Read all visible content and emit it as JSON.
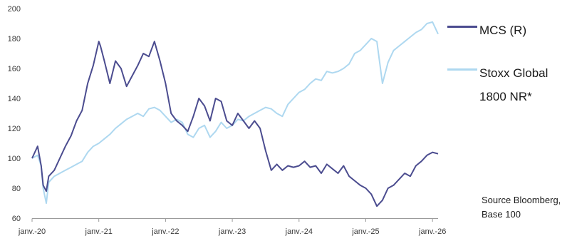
{
  "chart_data": {
    "type": "line",
    "title": "",
    "xlabel": "",
    "ylabel": "",
    "ylim": [
      60,
      200
    ],
    "yticks": [
      60,
      80,
      100,
      120,
      140,
      160,
      180,
      200
    ],
    "xticks": [
      "janv.-20",
      "janv.-21",
      "janv.-22",
      "janv.-23",
      "janv.-24",
      "janv.-25",
      "janv.-26"
    ],
    "x_start": "2020-01",
    "x_end": "2026-02",
    "grid": false,
    "legend_position": "right",
    "series": [
      {
        "name": "MCS (R)",
        "color": "#4b4c8f",
        "x": [
          "2020-01",
          "2020-02",
          "2020-02-20",
          "2020-03",
          "2020-03-18",
          "2020-04",
          "2020-05",
          "2020-06",
          "2020-07",
          "2020-08",
          "2020-09",
          "2020-10",
          "2020-11",
          "2020-12",
          "2021-01",
          "2021-01-10",
          "2021-02",
          "2021-03",
          "2021-04",
          "2021-05",
          "2021-06",
          "2021-07",
          "2021-08",
          "2021-09",
          "2021-10",
          "2021-11",
          "2021-12",
          "2022-01",
          "2022-02",
          "2022-03",
          "2022-04",
          "2022-05",
          "2022-06",
          "2022-07",
          "2022-08",
          "2022-09",
          "2022-10",
          "2022-11",
          "2022-12",
          "2023-01",
          "2023-02",
          "2023-03",
          "2023-04",
          "2023-05",
          "2023-06",
          "2023-07",
          "2023-08",
          "2023-09",
          "2023-10",
          "2023-11",
          "2023-12",
          "2024-01",
          "2024-02",
          "2024-03",
          "2024-04",
          "2024-05",
          "2024-06",
          "2024-07",
          "2024-08",
          "2024-09",
          "2024-10",
          "2024-11",
          "2024-12",
          "2025-01",
          "2025-02",
          "2025-03",
          "2025-04",
          "2025-05",
          "2025-06",
          "2025-07",
          "2025-08",
          "2025-09",
          "2025-10",
          "2025-11",
          "2025-12",
          "2026-01",
          "2026-02"
        ],
        "values": [
          100,
          108,
          95,
          82,
          78,
          88,
          92,
          100,
          108,
          115,
          125,
          132,
          150,
          162,
          178,
          175,
          165,
          150,
          165,
          160,
          148,
          155,
          162,
          170,
          168,
          178,
          165,
          150,
          130,
          125,
          122,
          118,
          128,
          140,
          135,
          125,
          140,
          138,
          125,
          122,
          130,
          125,
          120,
          125,
          120,
          105,
          92,
          96,
          92,
          95,
          94,
          95,
          98,
          94,
          95,
          90,
          96,
          93,
          90,
          95,
          88,
          85,
          82,
          80,
          76,
          68,
          72,
          80,
          82,
          86,
          90,
          88,
          95,
          98,
          102,
          104,
          103
        ]
      },
      {
        "name": "Stoxx Global\n1800 NR*",
        "color": "#aed8f0",
        "x": [
          "2020-01",
          "2020-02",
          "2020-02-20",
          "2020-03",
          "2020-03-18",
          "2020-04",
          "2020-05",
          "2020-06",
          "2020-07",
          "2020-08",
          "2020-09",
          "2020-10",
          "2020-11",
          "2020-12",
          "2021-01",
          "2021-02",
          "2021-03",
          "2021-04",
          "2021-05",
          "2021-06",
          "2021-07",
          "2021-08",
          "2021-09",
          "2021-10",
          "2021-11",
          "2021-12",
          "2022-01",
          "2022-02",
          "2022-03",
          "2022-04",
          "2022-05",
          "2022-06",
          "2022-07",
          "2022-08",
          "2022-09",
          "2022-10",
          "2022-11",
          "2022-12",
          "2023-01",
          "2023-02",
          "2023-03",
          "2023-04",
          "2023-05",
          "2023-06",
          "2023-07",
          "2023-08",
          "2023-09",
          "2023-10",
          "2023-11",
          "2023-12",
          "2024-01",
          "2024-02",
          "2024-03",
          "2024-04",
          "2024-05",
          "2024-06",
          "2024-07",
          "2024-08",
          "2024-09",
          "2024-10",
          "2024-11",
          "2024-12",
          "2025-01",
          "2025-02",
          "2025-03",
          "2025-04",
          "2025-05",
          "2025-06",
          "2025-07",
          "2025-08",
          "2025-09",
          "2025-10",
          "2025-11",
          "2025-12",
          "2026-01",
          "2026-02"
        ],
        "values": [
          100,
          102,
          95,
          80,
          70,
          84,
          88,
          90,
          92,
          94,
          96,
          98,
          104,
          108,
          110,
          113,
          116,
          120,
          123,
          126,
          128,
          130,
          128,
          133,
          134,
          132,
          128,
          124,
          126,
          124,
          116,
          114,
          120,
          122,
          114,
          118,
          124,
          120,
          122,
          126,
          125,
          128,
          130,
          132,
          134,
          133,
          130,
          128,
          136,
          140,
          144,
          146,
          150,
          153,
          152,
          158,
          157,
          158,
          160,
          163,
          170,
          172,
          176,
          180,
          178,
          150,
          164,
          172,
          175,
          178,
          181,
          184,
          186,
          190,
          191,
          183
        ]
      }
    ]
  },
  "legend": {
    "items": [
      {
        "label": "MCS (R)",
        "color": "#4b4c8f"
      },
      {
        "label": "Stoxx Global\n1800 NR*",
        "color": "#aed8f0"
      }
    ]
  },
  "footer": {
    "source_note": "Source Bloomberg,\nBase 100"
  }
}
